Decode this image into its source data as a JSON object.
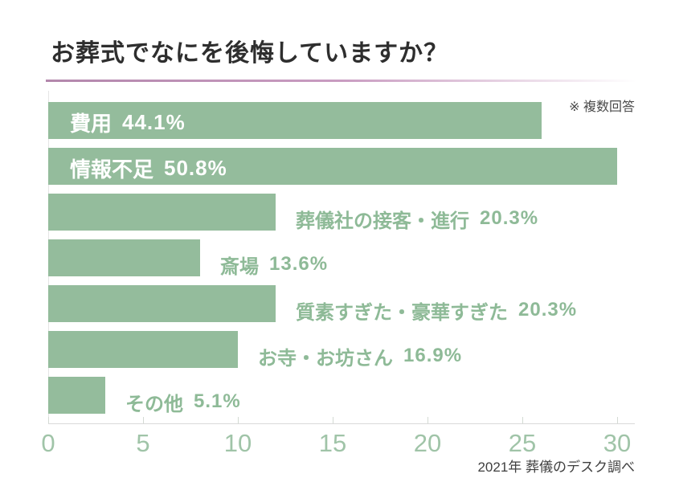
{
  "page": {
    "title": "お葬式でなにを後悔していますか？",
    "note": "※ 複数回答",
    "source": "2021年 葬儀のデスク調べ"
  },
  "colors": {
    "bar": "#94bc9c",
    "outside_label_text": "#8eba97",
    "tick_label_text": "#a0c4a8",
    "title_text": "#2e2e2e",
    "note_text": "#4a4a4a",
    "source_text": "#3f3f3f",
    "underline_from": "#b387ac",
    "underline_mid": "#c99cc1",
    "inside_label_text": "#ffffff"
  },
  "chart_data": {
    "type": "bar",
    "orientation": "horizontal",
    "title": "お葬式でなにを後悔していますか？",
    "note": "※ 複数回答",
    "source": "2021年 葬儀のデスク調べ",
    "categories": [
      "費用",
      "情報不足",
      "葬儀社の接客・進行",
      "斎場",
      "質素すぎた・豪華すぎた",
      "お寺・お坊さん",
      "その他"
    ],
    "values": [
      26,
      30,
      12,
      8,
      12,
      10,
      3
    ],
    "percent_labels": [
      "44.1%",
      "50.8%",
      "20.3%",
      "13.6%",
      "20.3%",
      "16.9%",
      "5.1%"
    ],
    "label_inside": [
      true,
      true,
      false,
      false,
      false,
      false,
      false
    ],
    "xlabel": "",
    "ylabel": "",
    "xlim": [
      0,
      30
    ],
    "xticks": [
      0,
      5,
      10,
      15,
      20,
      25,
      30
    ],
    "grid": false,
    "legend": false
  }
}
